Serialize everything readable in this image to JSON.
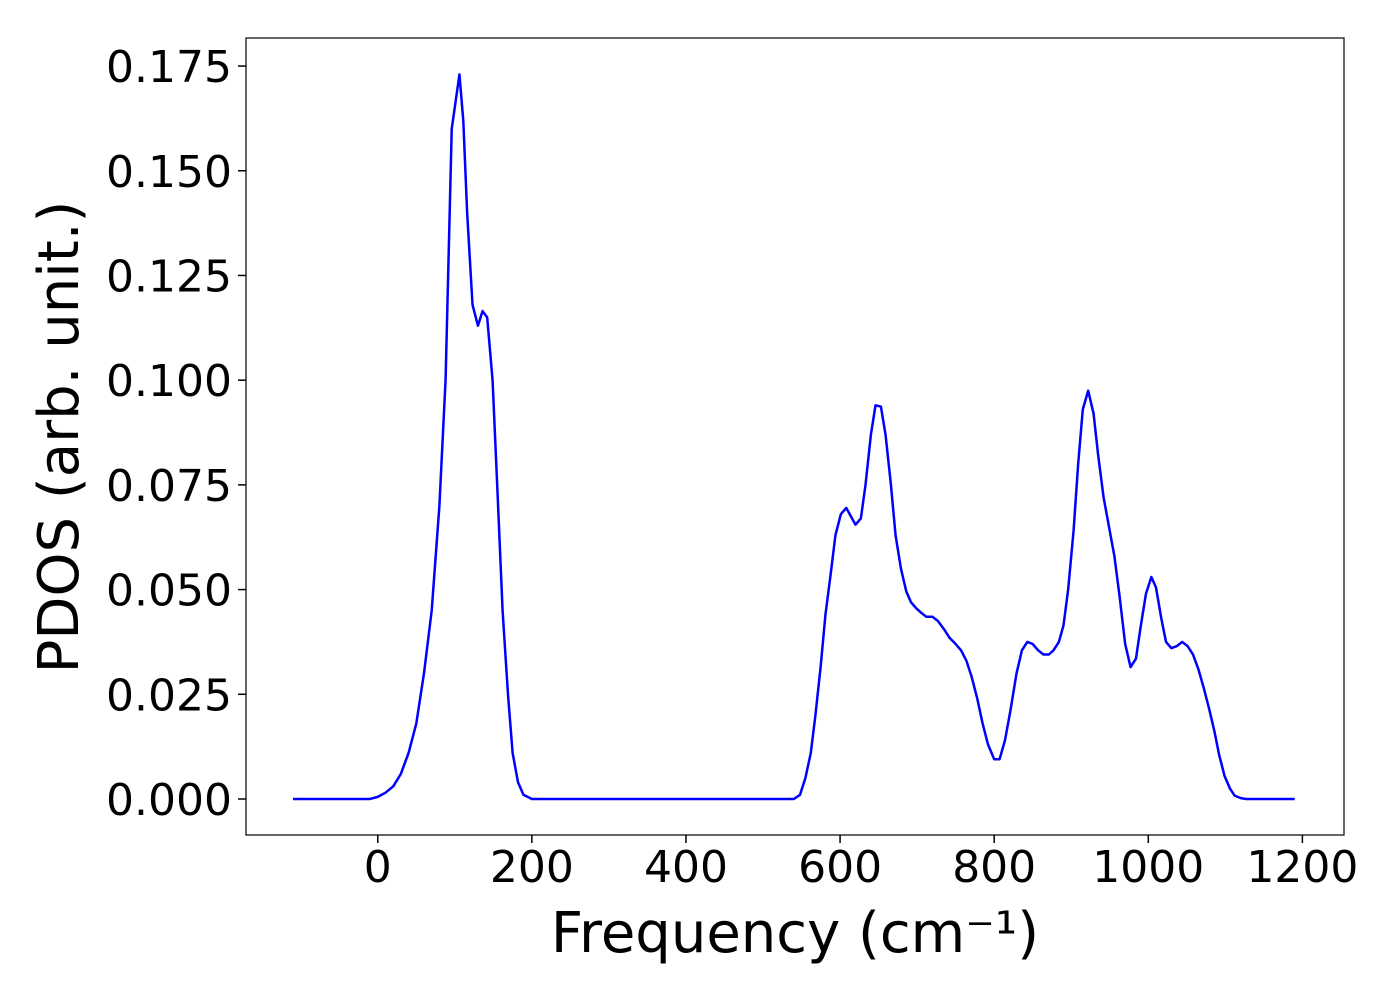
{
  "chart_data": {
    "type": "line",
    "x_label": "Frequency (cm⁻¹)",
    "y_label": "PDOS (arb. unit.)",
    "xlim": [
      -171,
      1254
    ],
    "ylim": [
      -0.0086,
      0.1817
    ],
    "xticks": [
      0,
      200,
      400,
      600,
      800,
      1000,
      1200
    ],
    "yticks": [
      {
        "value": 0,
        "label": "0.000"
      },
      {
        "value": 0.025,
        "label": "0.025"
      },
      {
        "value": 0.05,
        "label": "0.050"
      },
      {
        "value": 0.075,
        "label": "0.075"
      },
      {
        "value": 0.1,
        "label": "0.100"
      },
      {
        "value": 0.125,
        "label": "0.125"
      },
      {
        "value": 0.15,
        "label": "0.150"
      },
      {
        "value": 0.175,
        "label": "0.175"
      }
    ],
    "grid": false,
    "x": [
      -110,
      -10,
      0,
      10,
      20,
      30,
      40,
      50,
      60,
      70,
      80,
      88,
      96,
      106,
      111,
      116,
      123,
      130,
      136,
      142,
      149,
      155,
      162,
      169,
      175,
      182,
      189,
      200,
      540,
      548,
      555,
      562,
      568,
      575,
      581,
      588,
      594,
      601,
      608,
      614,
      620,
      627,
      633,
      640,
      646,
      653,
      659,
      666,
      672,
      679,
      686,
      692,
      699,
      705,
      712,
      720,
      727,
      735,
      742,
      750,
      757,
      764,
      771,
      778,
      785,
      792,
      800,
      807,
      814,
      821,
      829,
      836,
      843,
      850,
      857,
      864,
      871,
      877,
      884,
      890,
      896,
      903,
      909,
      915,
      922,
      929,
      935,
      942,
      949,
      956,
      963,
      970,
      977,
      984,
      990,
      997,
      1004,
      1010,
      1017,
      1023,
      1030,
      1037,
      1044,
      1051,
      1058,
      1065,
      1072,
      1079,
      1086,
      1092,
      1099,
      1106,
      1112,
      1120,
      1127,
      1190
    ],
    "series": [
      {
        "name": "PDOS",
        "color": "#0000ff",
        "values": [
          0,
          0,
          0.0005,
          0.0015,
          0.003,
          0.006,
          0.011,
          0.018,
          0.03,
          0.045,
          0.07,
          0.1,
          0.16,
          0.173,
          0.162,
          0.14,
          0.118,
          0.113,
          0.1165,
          0.115,
          0.1,
          0.075,
          0.045,
          0.025,
          0.011,
          0.004,
          0.001,
          0,
          0,
          0.001,
          0.005,
          0.011,
          0.02,
          0.032,
          0.044,
          0.054,
          0.063,
          0.068,
          0.0695,
          0.0675,
          0.0655,
          0.067,
          0.075,
          0.087,
          0.094,
          0.0937,
          0.087,
          0.075,
          0.063,
          0.055,
          0.0495,
          0.047,
          0.0455,
          0.0445,
          0.0435,
          0.0435,
          0.0425,
          0.0405,
          0.0385,
          0.037,
          0.0355,
          0.033,
          0.029,
          0.024,
          0.018,
          0.013,
          0.0095,
          0.0095,
          0.014,
          0.021,
          0.03,
          0.0355,
          0.0375,
          0.037,
          0.0355,
          0.0345,
          0.0345,
          0.0355,
          0.0375,
          0.0415,
          0.05,
          0.064,
          0.08,
          0.093,
          0.0975,
          0.092,
          0.082,
          0.072,
          0.065,
          0.058,
          0.048,
          0.037,
          0.0315,
          0.0335,
          0.041,
          0.049,
          0.053,
          0.0505,
          0.043,
          0.0375,
          0.036,
          0.0365,
          0.0375,
          0.0365,
          0.0345,
          0.031,
          0.0265,
          0.0215,
          0.016,
          0.0105,
          0.0055,
          0.0025,
          0.0008,
          0.0002,
          0,
          0
        ]
      }
    ]
  }
}
